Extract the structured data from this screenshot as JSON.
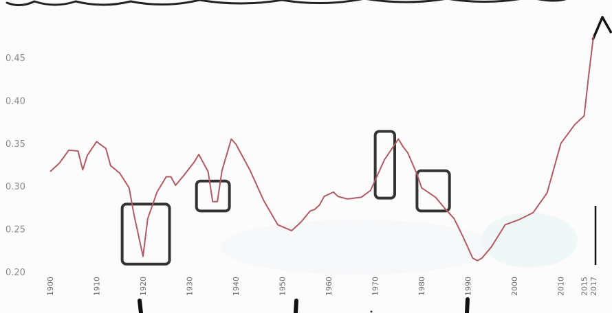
{
  "chart_data": {
    "type": "line",
    "title": "",
    "xlabel": "",
    "ylabel": "",
    "xlim": [
      1900,
      2017
    ],
    "ylim": [
      0.2,
      0.5
    ],
    "y_ticks": [
      0.2,
      0.25,
      0.3,
      0.35,
      0.4,
      0.45
    ],
    "y_tick_labels": [
      "0.20",
      "0.25",
      "0.30",
      "0.35",
      "0.40",
      "0.45"
    ],
    "x_ticks": [
      1900,
      1910,
      1920,
      1930,
      1940,
      1950,
      1960,
      1970,
      1980,
      1990,
      2000,
      2010,
      2015,
      2017
    ],
    "x_tick_labels": [
      "1900",
      "1910",
      "1920",
      "1930",
      "1940",
      "1950",
      "1960",
      "1970",
      "1980",
      "1990",
      "2000",
      "2010",
      "2015",
      "2017"
    ],
    "grid": false,
    "line_color": "#b05a62",
    "annotation_color": "#333333",
    "series": [
      {
        "x": [
          1900,
          1902,
          1904,
          1906,
          1907,
          1908,
          1910,
          1912,
          1913,
          1915,
          1917,
          1918,
          1920,
          1921,
          1923,
          1925,
          1926,
          1927,
          1929,
          1931,
          1932,
          1934,
          1935,
          1936,
          1937,
          1939,
          1940,
          1943,
          1946,
          1949,
          1952,
          1954,
          1956,
          1957,
          1958,
          1959,
          1961,
          1962,
          1964,
          1967,
          1969,
          1970,
          1972,
          1975,
          1976,
          1977,
          1979,
          1980,
          1983,
          1985,
          1987,
          1989,
          1991,
          1992,
          1993,
          1995,
          1998,
          2001,
          2004,
          2007,
          2010,
          2013,
          2015,
          2016,
          2017
        ],
        "y": [
          0.317,
          0.327,
          0.342,
          0.341,
          0.319,
          0.336,
          0.352,
          0.344,
          0.324,
          0.315,
          0.298,
          0.268,
          0.218,
          0.262,
          0.293,
          0.311,
          0.311,
          0.301,
          0.314,
          0.328,
          0.337,
          0.317,
          0.282,
          0.282,
          0.318,
          0.355,
          0.349,
          0.319,
          0.283,
          0.255,
          0.248,
          0.258,
          0.271,
          0.273,
          0.278,
          0.288,
          0.293,
          0.288,
          0.285,
          0.287,
          0.295,
          0.307,
          0.331,
          0.355,
          0.346,
          0.339,
          0.314,
          0.298,
          0.287,
          0.274,
          0.262,
          0.24,
          0.216,
          0.213,
          0.216,
          0.229,
          0.255,
          0.261,
          0.269,
          0.292,
          0.35,
          0.372,
          0.382,
          0.43,
          0.475
        ]
      }
    ],
    "annotations": [
      {
        "shape": "rect",
        "x0": 1915.5,
        "x1": 1925.7,
        "y0": 0.209,
        "y1": 0.279
      },
      {
        "shape": "rect",
        "x0": 1931.5,
        "x1": 1938.6,
        "y0": 0.271,
        "y1": 0.306
      },
      {
        "shape": "rect",
        "x0": 1970.0,
        "x1": 1974.2,
        "y0": 0.286,
        "y1": 0.364
      },
      {
        "shape": "rect",
        "x0": 1979.0,
        "x1": 1986.0,
        "y0": 0.271,
        "y1": 0.318
      }
    ]
  }
}
